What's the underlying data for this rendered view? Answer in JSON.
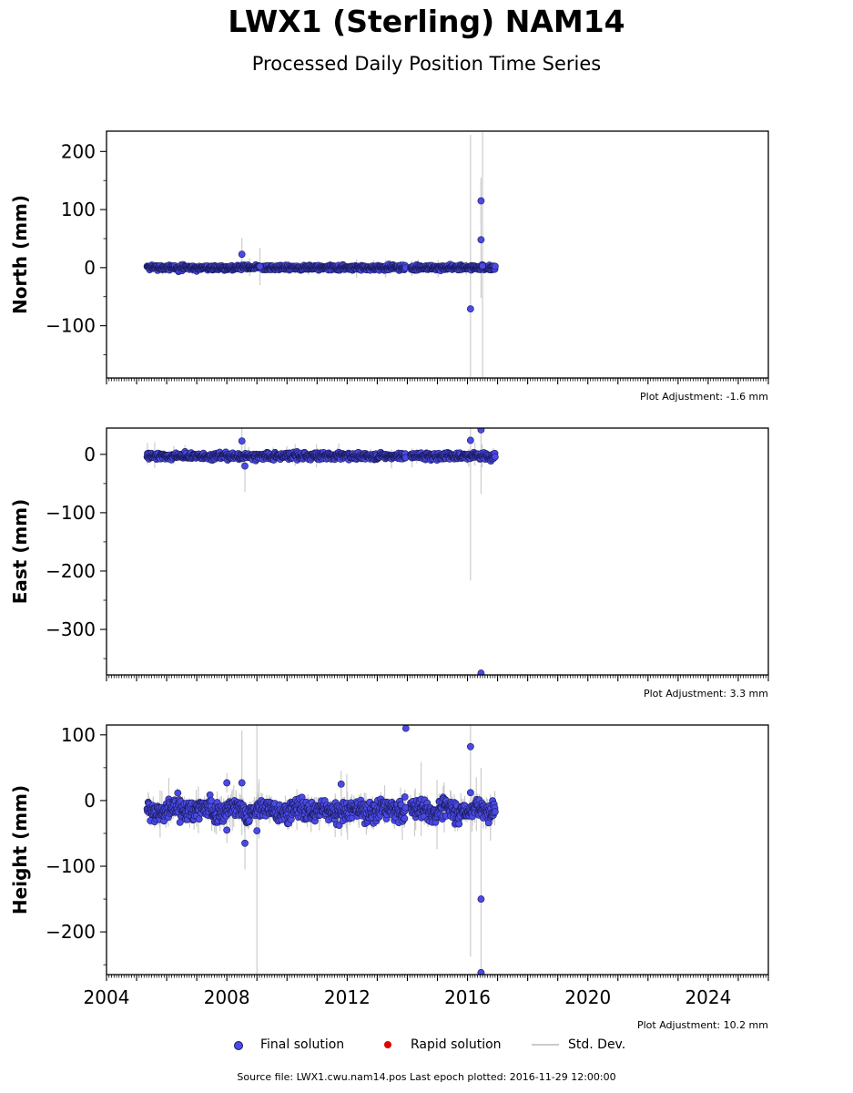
{
  "title": "LWX1 (Sterling) NAM14",
  "subtitle": "Processed Daily Position Time Series",
  "legend": {
    "final_label": "Final solution",
    "rapid_label": "Rapid solution",
    "stddev_label": "Std. Dev."
  },
  "footer": "Source file: LWX1.cwu.nam14.pos  Last epoch plotted: 2016-11-29 12:00:00",
  "colors": {
    "final": "#4a4ae6",
    "final_edge": "#1a1a5a",
    "rapid": "#e00000",
    "stddev": "#cccccc"
  },
  "chart_data": [
    {
      "type": "scatter",
      "panel": "north",
      "ylabel": "North (mm)",
      "ylim": [
        -190,
        235
      ],
      "xlim": [
        2004,
        2026
      ],
      "yticks": [
        -100,
        0,
        100,
        200
      ],
      "xticks": [
        2004,
        2008,
        2012,
        2016,
        2020,
        2024
      ],
      "show_xtick_labels": false,
      "adjustment": "Plot Adjustment: -1.6 mm",
      "series": [
        {
          "name": "Final solution",
          "x_range": [
            2005.35,
            2016.92
          ],
          "baseline": 0,
          "noise": 3.0,
          "outliers": [
            {
              "x": 2008.5,
              "y": 23,
              "err": 28
            },
            {
              "x": 2009.1,
              "y": 2,
              "err": 32
            },
            {
              "x": 2016.1,
              "y": -71,
              "err": 300
            },
            {
              "x": 2016.45,
              "y": 115,
              "err": 40
            },
            {
              "x": 2016.45,
              "y": 48,
              "err": 100
            },
            {
              "x": 2016.5,
              "y": 3,
              "err": 230
            }
          ]
        }
      ]
    },
    {
      "type": "scatter",
      "panel": "east",
      "ylabel": "East (mm)",
      "ylim": [
        -378,
        45
      ],
      "xlim": [
        2004,
        2026
      ],
      "yticks": [
        -300,
        -200,
        -100,
        0
      ],
      "xticks": [
        2004,
        2008,
        2012,
        2016,
        2020,
        2024
      ],
      "show_xtick_labels": false,
      "adjustment": "Plot Adjustment: 3.3 mm",
      "series": [
        {
          "name": "Final solution",
          "x_range": [
            2005.35,
            2016.92
          ],
          "baseline": -3,
          "noise": 4.0,
          "outliers": [
            {
              "x": 2008.5,
              "y": 23,
              "err": 40
            },
            {
              "x": 2008.6,
              "y": -20,
              "err": 45
            },
            {
              "x": 2016.1,
              "y": 24,
              "err": 240
            },
            {
              "x": 2016.45,
              "y": 42,
              "err": 110
            },
            {
              "x": 2016.45,
              "y": -375,
              "err": 5
            }
          ]
        }
      ]
    },
    {
      "type": "scatter",
      "panel": "height",
      "ylabel": "Height (mm)",
      "ylim": [
        -265,
        115
      ],
      "xlim": [
        2004,
        2026
      ],
      "yticks": [
        -200,
        -100,
        0,
        100
      ],
      "xticks": [
        2004,
        2008,
        2012,
        2016,
        2020,
        2024
      ],
      "show_xtick_labels": true,
      "adjustment": "Plot Adjustment: 10.2 mm",
      "series": [
        {
          "name": "Final solution",
          "x_range": [
            2005.35,
            2016.92
          ],
          "baseline": -15,
          "noise": 11.0,
          "outliers": [
            {
              "x": 2008.0,
              "y": 27,
              "err": 15
            },
            {
              "x": 2008.0,
              "y": -45,
              "err": 20
            },
            {
              "x": 2008.5,
              "y": 27,
              "err": 80
            },
            {
              "x": 2008.6,
              "y": -65,
              "err": 40
            },
            {
              "x": 2009.0,
              "y": -46,
              "err": 260
            },
            {
              "x": 2011.8,
              "y": 25,
              "err": 20
            },
            {
              "x": 2013.95,
              "y": 110,
              "err": 5
            },
            {
              "x": 2016.1,
              "y": 82,
              "err": 320
            },
            {
              "x": 2016.1,
              "y": 12,
              "err": 40
            },
            {
              "x": 2016.45,
              "y": -150,
              "err": 200
            },
            {
              "x": 2016.45,
              "y": -262,
              "err": 5
            }
          ]
        }
      ]
    }
  ]
}
